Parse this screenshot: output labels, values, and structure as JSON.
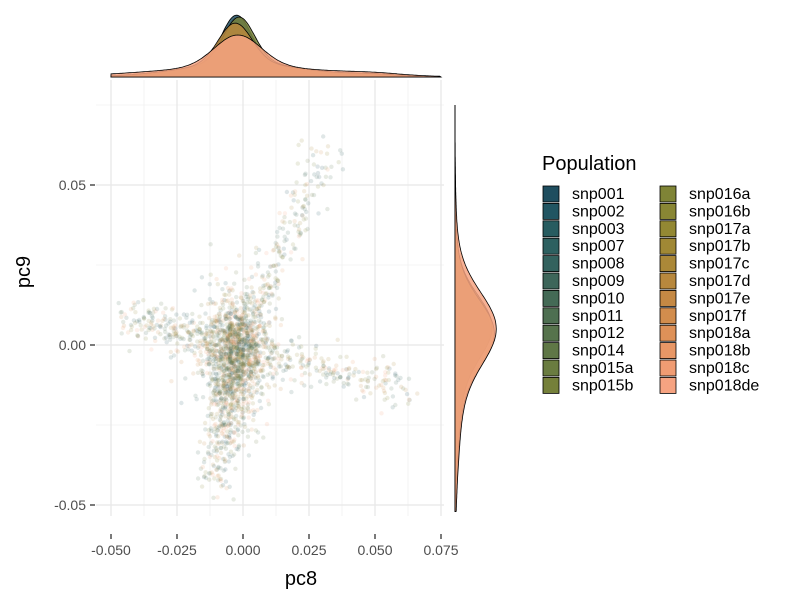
{
  "chart_data": {
    "type": "scatter",
    "subtype": "scatter with marginal density plots",
    "xlabel": "pc8",
    "ylabel": "pc9",
    "xlim": [
      -0.052,
      0.075
    ],
    "ylim": [
      -0.055,
      0.076
    ],
    "x_ticks": [
      -0.05,
      -0.025,
      0.0,
      0.025,
      0.05,
      0.075
    ],
    "x_tick_labels": [
      "-0.050",
      "-0.025",
      "0.000",
      "0.025",
      "0.050",
      "0.075"
    ],
    "y_ticks": [
      -0.05,
      0.0,
      0.05
    ],
    "y_tick_labels": [
      "-0.05",
      "0.00",
      "0.05"
    ],
    "grid": true,
    "legend": {
      "title": "Population",
      "placement": "right",
      "columns": 2,
      "entries": [
        {
          "label": "snp001",
          "color": "#1F4E5F"
        },
        {
          "label": "snp002",
          "color": "#215562"
        },
        {
          "label": "snp003",
          "color": "#275C60"
        },
        {
          "label": "snp007",
          "color": "#2D6060"
        },
        {
          "label": "snp008",
          "color": "#33625E"
        },
        {
          "label": "snp009",
          "color": "#3D665A"
        },
        {
          "label": "snp010",
          "color": "#446A56"
        },
        {
          "label": "snp011",
          "color": "#4E6F51"
        },
        {
          "label": "snp012",
          "color": "#56734C"
        },
        {
          "label": "snp014",
          "color": "#5F7746"
        },
        {
          "label": "snp015a",
          "color": "#6A7C40"
        },
        {
          "label": "snp015b",
          "color": "#75803A"
        },
        {
          "label": "snp016a",
          "color": "#7F8436"
        },
        {
          "label": "snp016b",
          "color": "#898634"
        },
        {
          "label": "snp017a",
          "color": "#938833"
        },
        {
          "label": "snp017b",
          "color": "#A08835"
        },
        {
          "label": "snp017c",
          "color": "#AB8838"
        },
        {
          "label": "snp017d",
          "color": "#B8883D"
        },
        {
          "label": "snp017e",
          "color": "#C58944"
        },
        {
          "label": "snp017f",
          "color": "#D28D4D"
        },
        {
          "label": "snp018a",
          "color": "#DE9158"
        },
        {
          "label": "snp018b",
          "color": "#E89766"
        },
        {
          "label": "snp018c",
          "color": "#F09C73"
        },
        {
          "label": "snp018de",
          "color": "#F6A381"
        }
      ]
    },
    "scatter_clusters": [
      {
        "label": "central cloud",
        "x_center": -0.003,
        "y_center": -0.003,
        "x_sd": 0.01,
        "y_sd": 0.014
      },
      {
        "label": "upper-right arm",
        "x_from": 0.0,
        "y_from": 0.0,
        "x_to": 0.03,
        "y_to": 0.06
      },
      {
        "label": "right arm",
        "x_from": 0.0,
        "y_from": -0.002,
        "x_to": 0.06,
        "y_to": -0.013
      },
      {
        "label": "left arm",
        "x_from": -0.005,
        "y_from": 0.0,
        "x_to": -0.045,
        "y_to": 0.008
      },
      {
        "label": "lower tail",
        "x_from": -0.005,
        "y_from": -0.01,
        "x_to": -0.01,
        "y_to": -0.045
      }
    ],
    "point_alpha": 0.15,
    "marginal_x_density": {
      "mode_x": -0.002,
      "range": [
        -0.05,
        0.075
      ]
    },
    "marginal_y_density": {
      "mode_y": 0.005,
      "range": [
        -0.052,
        0.075
      ]
    },
    "density_fill_color": "#F6A381"
  }
}
